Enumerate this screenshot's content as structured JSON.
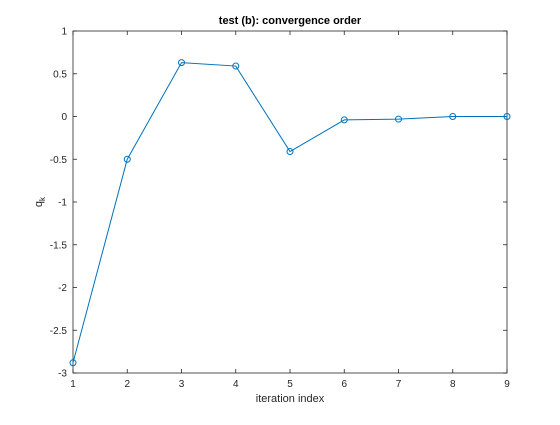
{
  "chart_data": {
    "type": "line",
    "title": "test (b): convergence order",
    "xlabel": "iteration index",
    "ylabel_main": "q",
    "ylabel_subscript": "k",
    "xlim": [
      1,
      9
    ],
    "ylim": [
      -3,
      1
    ],
    "grid": false,
    "legend": "none",
    "xticks": [
      1,
      2,
      3,
      4,
      5,
      6,
      7,
      8,
      9
    ],
    "xtick_labels": [
      "1",
      "2",
      "3",
      "4",
      "5",
      "6",
      "7",
      "8",
      "9"
    ],
    "yticks": [
      -3,
      -2.5,
      -2,
      -1.5,
      -1,
      -0.5,
      0,
      0.5,
      1
    ],
    "ytick_labels": [
      "-3",
      "-2.5",
      "-2",
      "-1.5",
      "-1",
      "-0.5",
      "0",
      "0.5",
      "1"
    ],
    "series": [
      {
        "x": [
          1,
          2,
          3,
          4,
          5,
          6,
          7,
          8,
          9
        ],
        "values": [
          -2.88,
          -0.5,
          0.63,
          0.59,
          -0.41,
          -0.04,
          -0.03,
          0.0,
          0.0
        ],
        "marker": "circle",
        "color": "#0072bd"
      }
    ]
  }
}
